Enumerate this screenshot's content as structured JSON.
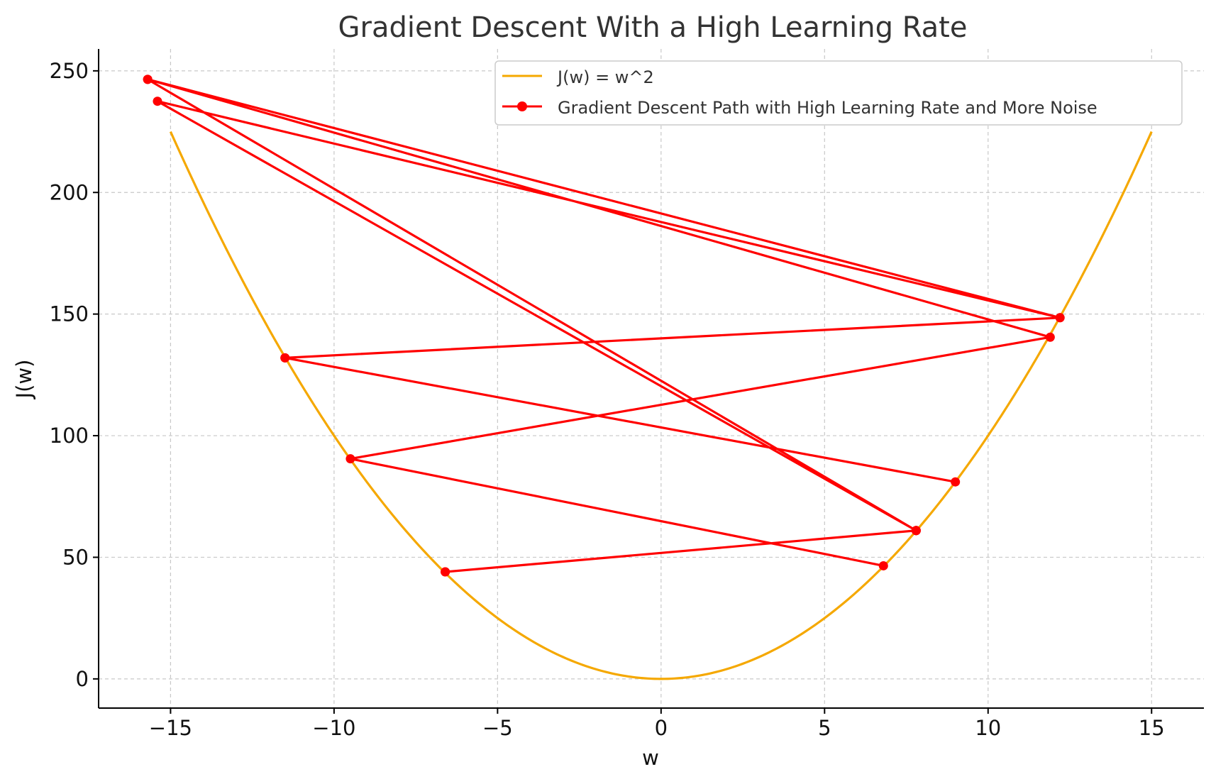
{
  "chart_data": {
    "type": "line",
    "title": "Gradient Descent With a High Learning Rate",
    "xlabel": "w",
    "ylabel": "J(w)",
    "xlim": [
      -17.2,
      16.6
    ],
    "ylim": [
      -12,
      259
    ],
    "xticks": [
      -15,
      -10,
      -5,
      0,
      5,
      10,
      15
    ],
    "yticks": [
      0,
      50,
      100,
      150,
      200,
      250
    ],
    "xtick_labels": [
      "−15",
      "−10",
      "−5",
      "0",
      "5",
      "10",
      "15"
    ],
    "ytick_labels": [
      "0",
      "50",
      "100",
      "150",
      "200",
      "250"
    ],
    "grid": true,
    "legend_position": "top-right",
    "colors": {
      "curve": "#f5a800",
      "path": "#ff0000",
      "grid": "#c8c8c8",
      "axis": "#000000",
      "text": "#333333"
    },
    "series": [
      {
        "name": "J(w) = w^2",
        "kind": "function",
        "function": "w^2",
        "domain": [
          -15,
          15
        ]
      },
      {
        "name": "Gradient Descent Path with High Learning Rate and More Noise",
        "kind": "path",
        "points": [
          {
            "w": 7.8,
            "J": 61
          },
          {
            "w": -6.6,
            "J": 44
          },
          {
            "w": 7.8,
            "J": 61
          },
          {
            "w": -15.7,
            "J": 246.5
          },
          {
            "w": 12.2,
            "J": 148.5
          },
          {
            "w": -11.5,
            "J": 132
          },
          {
            "w": 9.0,
            "J": 81
          },
          {
            "w": -11.5,
            "J": 132
          },
          {
            "w": 12.2,
            "J": 148.5
          },
          {
            "w": -15.4,
            "J": 237.5
          },
          {
            "w": 7.8,
            "J": 61
          },
          {
            "w": -6.6,
            "J": 44
          },
          {
            "w": 7.8,
            "J": 61
          },
          {
            "w": -15.7,
            "J": 246.5
          },
          {
            "w": 11.9,
            "J": 140.5
          },
          {
            "w": -9.5,
            "J": 90.5
          },
          {
            "w": 6.8,
            "J": 46.5
          }
        ]
      }
    ]
  }
}
